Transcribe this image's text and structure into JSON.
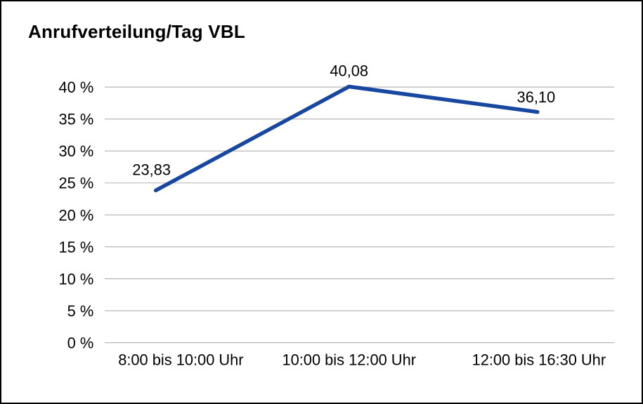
{
  "chart_data": {
    "type": "line",
    "title": "Anrufverteilung/Tag VBL",
    "categories": [
      "8:00 bis 10:00 Uhr",
      "10:00 bis 12:00 Uhr",
      "12:00 bis 16:30 Uhr"
    ],
    "values": [
      23.83,
      40.08,
      36.1
    ],
    "value_labels": [
      "23,83",
      "40,08",
      "36,10"
    ],
    "ylim": [
      0,
      40
    ],
    "yticks": [
      {
        "value": 0,
        "label": "0 %"
      },
      {
        "value": 5,
        "label": "5 %"
      },
      {
        "value": 10,
        "label": "10 %"
      },
      {
        "value": 15,
        "label": "15 %"
      },
      {
        "value": 20,
        "label": "20 %"
      },
      {
        "value": 25,
        "label": "25 %"
      },
      {
        "value": 30,
        "label": "30 %"
      },
      {
        "value": 35,
        "label": "35 %"
      },
      {
        "value": 40,
        "label": "40 %"
      }
    ],
    "grid": true,
    "legend": "none",
    "line_color": "#17479E",
    "grid_color": "#a6a6a6",
    "text_color": "#000000",
    "background": "#FFFFFF",
    "border_color": "#000000"
  }
}
